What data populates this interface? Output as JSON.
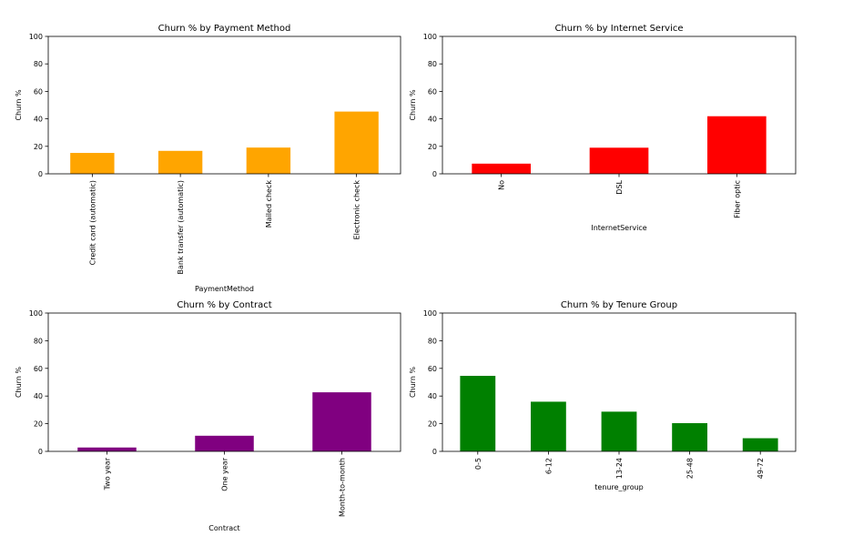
{
  "chart_data": [
    {
      "type": "bar",
      "title": "Churn % by Payment Method",
      "xlabel": "PaymentMethod",
      "ylabel": "Churn %",
      "ylim": [
        0,
        100
      ],
      "yticks": [
        0,
        20,
        40,
        60,
        80,
        100
      ],
      "grid": false,
      "color": "#ffa500",
      "categories": [
        "Credit card (automatic)",
        "Bank transfer (automatic)",
        "Mailed check",
        "Electronic check"
      ],
      "values": [
        15.2,
        16.7,
        19.1,
        45.3
      ]
    },
    {
      "type": "bar",
      "title": "Churn % by Internet Service",
      "xlabel": "InternetService",
      "ylabel": "Churn %",
      "ylim": [
        0,
        100
      ],
      "yticks": [
        0,
        20,
        40,
        60,
        80,
        100
      ],
      "grid": false,
      "color": "#ff0000",
      "categories": [
        "No",
        "DSL",
        "Fiber optic"
      ],
      "values": [
        7.4,
        19.0,
        41.9
      ]
    },
    {
      "type": "bar",
      "title": "Churn % by Contract",
      "xlabel": "Contract",
      "ylabel": "Churn %",
      "ylim": [
        0,
        100
      ],
      "yticks": [
        0,
        20,
        40,
        60,
        80,
        100
      ],
      "grid": false,
      "color": "#800080",
      "categories": [
        "Two year",
        "One year",
        "Month-to-month"
      ],
      "values": [
        2.8,
        11.3,
        42.7
      ]
    },
    {
      "type": "bar",
      "title": "Churn % by Tenure Group",
      "xlabel": "tenure_group",
      "ylabel": "Churn %",
      "ylim": [
        0,
        100
      ],
      "yticks": [
        0,
        20,
        40,
        60,
        80,
        100
      ],
      "grid": false,
      "color": "#008000",
      "categories": [
        "0-5",
        "6-12",
        "13-24",
        "25-48",
        "49-72"
      ],
      "values": [
        54.6,
        35.9,
        28.7,
        20.4,
        9.5
      ]
    }
  ]
}
